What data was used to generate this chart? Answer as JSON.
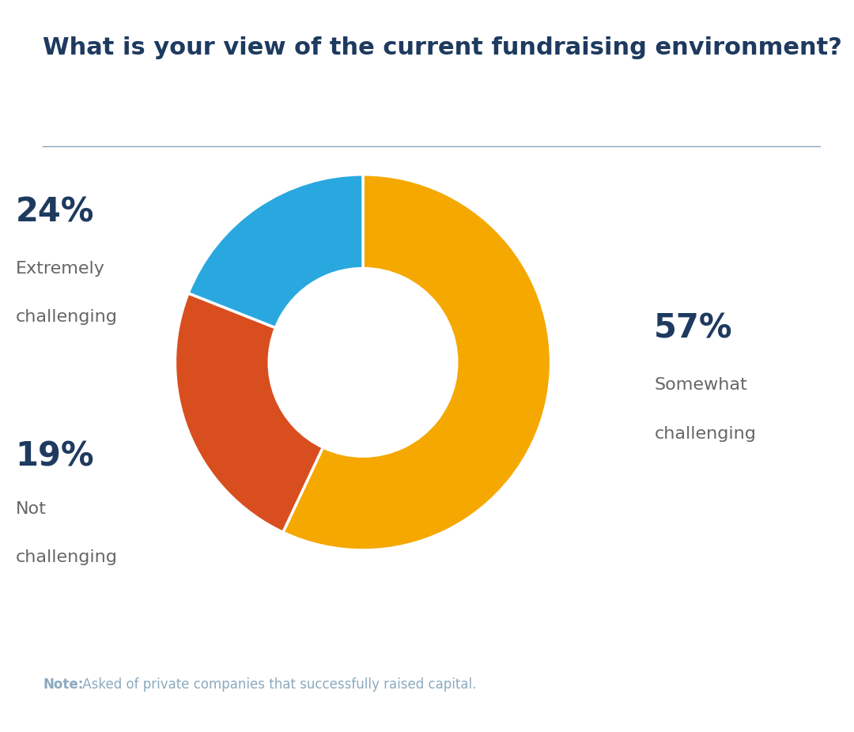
{
  "title": "What is your view of the current fundraising environment?",
  "title_color": "#1e3a5f",
  "title_fontsize": 22,
  "title_fontweight": "bold",
  "slices": [
    57,
    24,
    19
  ],
  "labels_line1": [
    "Somewhat",
    "Extremely",
    "Not"
  ],
  "labels_line2": [
    "challenging",
    "challenging",
    "challenging"
  ],
  "percentages": [
    "57%",
    "24%",
    "19%"
  ],
  "colors": [
    "#F5A800",
    "#D94E1F",
    "#29A8E0"
  ],
  "background_color": "#ffffff",
  "note_bold": "Note:",
  "note_text": " Asked of private companies that successfully raised capital.",
  "note_color": "#8BAABF",
  "separator_color": "#8aa5b8",
  "label_color_percent": "#1e3a5f",
  "label_color_text": "#666666",
  "start_angle": 90
}
